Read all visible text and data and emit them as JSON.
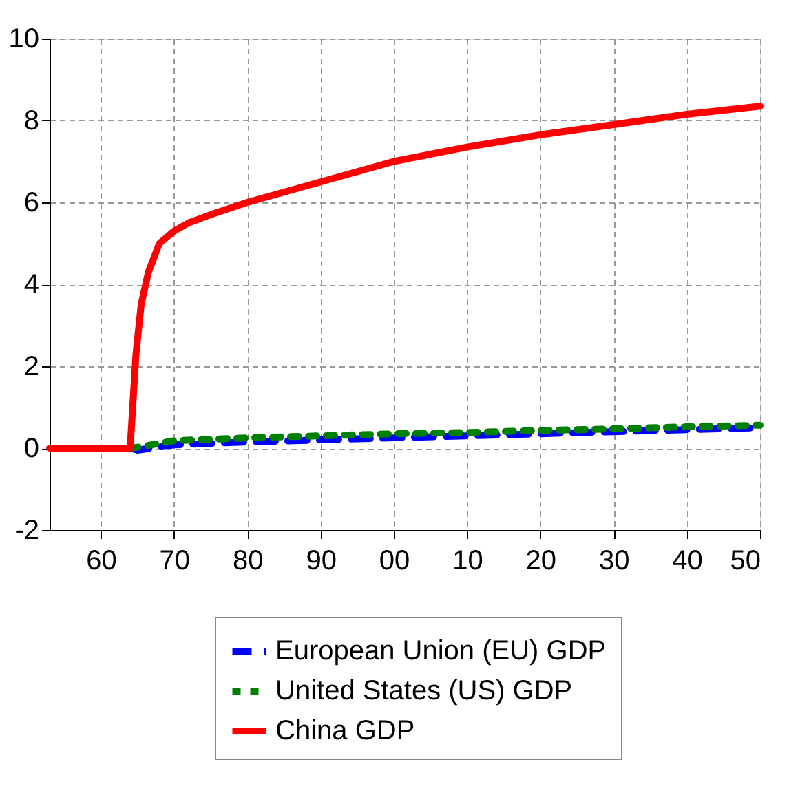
{
  "chart_data": {
    "type": "line",
    "xlim": [
      1953,
      2050
    ],
    "ylim": [
      -2,
      10
    ],
    "xticks": [
      {
        "value": 1960,
        "label": "60"
      },
      {
        "value": 1970,
        "label": "70"
      },
      {
        "value": 1980,
        "label": "80"
      },
      {
        "value": 1990,
        "label": "90"
      },
      {
        "value": 2000,
        "label": "00"
      },
      {
        "value": 2010,
        "label": "10"
      },
      {
        "value": 2020,
        "label": "20"
      },
      {
        "value": 2030,
        "label": "30"
      },
      {
        "value": 2040,
        "label": "40"
      },
      {
        "value": 2050,
        "label": "50"
      }
    ],
    "yticks": [
      -2,
      0,
      2,
      4,
      6,
      8,
      10
    ],
    "grid": true,
    "legend": "bottom",
    "marker": "none",
    "series": [
      {
        "name": "European Union (EU) GDP",
        "color": "#0000ff",
        "line_style": "dashed",
        "x": [
          1964,
          1965,
          1970,
          1980,
          1990,
          2000,
          2010,
          2020,
          2030,
          2040,
          2050
        ],
        "values": [
          0,
          -0.05,
          0.08,
          0.15,
          0.2,
          0.25,
          0.3,
          0.35,
          0.4,
          0.45,
          0.5
        ]
      },
      {
        "name": "United States (US) GDP",
        "color": "#008000",
        "line_style": "dotted",
        "x": [
          1964,
          1965,
          1970,
          1980,
          1990,
          2000,
          2010,
          2020,
          2030,
          2040,
          2050
        ],
        "values": [
          0,
          0.02,
          0.18,
          0.25,
          0.3,
          0.35,
          0.38,
          0.43,
          0.47,
          0.52,
          0.56
        ]
      },
      {
        "name": "China GDP",
        "color": "#ff0000",
        "line_style": "solid",
        "x": [
          1953,
          1964,
          1964.8,
          1965.5,
          1966.5,
          1968,
          1970,
          1972,
          1975,
          1980,
          1990,
          2000,
          2010,
          2020,
          2030,
          2040,
          2050
        ],
        "values": [
          0,
          0,
          2.3,
          3.5,
          4.3,
          5.0,
          5.3,
          5.5,
          5.7,
          6.0,
          6.5,
          7.0,
          7.35,
          7.65,
          7.9,
          8.15,
          8.35
        ]
      }
    ]
  }
}
